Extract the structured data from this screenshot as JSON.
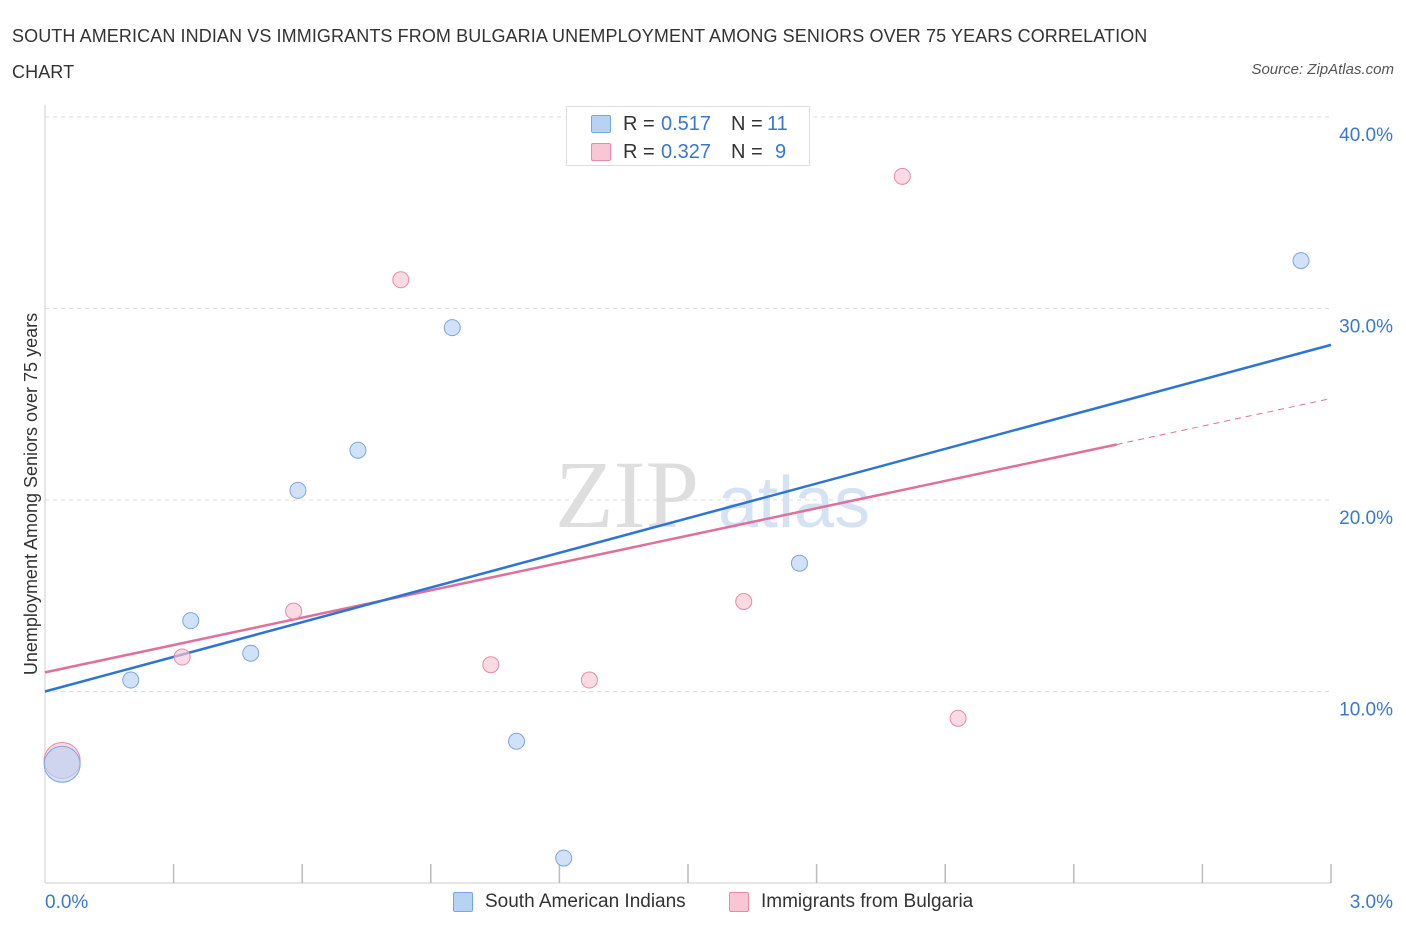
{
  "header": {
    "title": "SOUTH AMERICAN INDIAN VS IMMIGRANTS FROM BULGARIA UNEMPLOYMENT AMONG SENIORS OVER 75 YEARS CORRELATION CHART",
    "source": "Source: ZipAtlas.com"
  },
  "watermark": {
    "zip": "ZIP",
    "atlas": "atlas"
  },
  "legend": {
    "rows": [
      {
        "r_label": "R =",
        "r_value": "0.517",
        "n_label": "N =",
        "n_value": "11"
      },
      {
        "r_label": "R =",
        "r_value": "0.327",
        "n_label": "N =",
        "n_value": "9"
      }
    ]
  },
  "colors": {
    "blue_fill": "#b8d2f4",
    "blue_stroke": "#7aa6e0",
    "blue_line": "#2d74d4",
    "pink_fill": "#f8c6d4",
    "pink_stroke": "#e88aa6",
    "pink_line": "#e0709a",
    "tick_label": "#3a78d0",
    "grid": "#dcdcdc"
  },
  "chart_data": {
    "type": "scatter",
    "title": "SOUTH AMERICAN INDIAN VS IMMIGRANTS FROM BULGARIA UNEMPLOYMENT AMONG SENIORS OVER 75 YEARS CORRELATION CHART",
    "xlabel": "",
    "ylabel": "Unemployment Among Seniors over 75 years",
    "xlim": [
      0,
      3.0
    ],
    "ylim": [
      0,
      40
    ],
    "x_ticks": [
      "0.0%",
      "3.0%"
    ],
    "y_ticks": [
      {
        "value": 10,
        "label": "10.0%"
      },
      {
        "value": 20,
        "label": "20.0%"
      },
      {
        "value": 30,
        "label": "30.0%"
      },
      {
        "value": 40,
        "label": "40.0%"
      }
    ],
    "grid": true,
    "legend_position": "bottom",
    "series": [
      {
        "name": "South American Indians",
        "points": [
          {
            "x": 0.04,
            "y": 6.2,
            "large": true
          },
          {
            "x": 0.2,
            "y": 10.6
          },
          {
            "x": 0.34,
            "y": 13.7
          },
          {
            "x": 0.48,
            "y": 12.0
          },
          {
            "x": 0.59,
            "y": 20.5
          },
          {
            "x": 0.73,
            "y": 22.6
          },
          {
            "x": 0.95,
            "y": 29.0
          },
          {
            "x": 1.1,
            "y": 7.4
          },
          {
            "x": 1.21,
            "y": 1.3
          },
          {
            "x": 1.76,
            "y": 16.7
          },
          {
            "x": 2.93,
            "y": 32.5
          }
        ],
        "trend": {
          "x0": 0.0,
          "y0": 10.0,
          "x1": 3.0,
          "y1": 28.1
        }
      },
      {
        "name": "Immigrants from Bulgaria",
        "points": [
          {
            "x": 0.04,
            "y": 6.4,
            "large": true
          },
          {
            "x": 0.32,
            "y": 11.8
          },
          {
            "x": 0.58,
            "y": 14.2
          },
          {
            "x": 0.83,
            "y": 31.5
          },
          {
            "x": 1.04,
            "y": 11.4
          },
          {
            "x": 1.27,
            "y": 10.6
          },
          {
            "x": 1.63,
            "y": 14.7
          },
          {
            "x": 2.0,
            "y": 36.9
          },
          {
            "x": 2.13,
            "y": 8.6
          }
        ],
        "trend": {
          "x0": 0.0,
          "y0": 11.0,
          "x1": 2.5,
          "y1": 22.9
        },
        "trend_dashed_to": {
          "x": 3.0,
          "y": 25.3
        }
      }
    ]
  }
}
